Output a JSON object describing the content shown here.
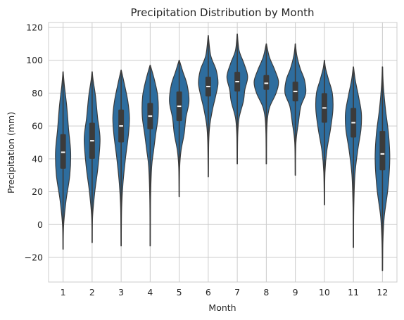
{
  "chart_data": {
    "type": "violin",
    "title": "Precipitation Distribution by Month",
    "xlabel": "Month",
    "ylabel": "Precipitation (mm)",
    "ylim": [
      -35,
      123
    ],
    "yticks": [
      -20,
      0,
      20,
      40,
      60,
      80,
      100,
      120
    ],
    "grid": true,
    "categories": [
      "1",
      "2",
      "3",
      "4",
      "5",
      "6",
      "7",
      "8",
      "9",
      "10",
      "11",
      "12"
    ],
    "fill_color": "#2e6d9e",
    "edge_color": "#3b3b3b",
    "box_color": "#3b3b3b",
    "median_color": "#ffffff",
    "violins": [
      {
        "min": -15,
        "q1": 34,
        "median": 44,
        "q3": 55,
        "max": 93,
        "profile": [
          [
            -15,
            0.01
          ],
          [
            0,
            0.05
          ],
          [
            15,
            0.25
          ],
          [
            30,
            0.55
          ],
          [
            44,
            0.62
          ],
          [
            58,
            0.45
          ],
          [
            72,
            0.3
          ],
          [
            85,
            0.1
          ],
          [
            93,
            0.01
          ]
        ]
      },
      {
        "min": -11,
        "q1": 40,
        "median": 51,
        "q3": 62,
        "max": 93,
        "profile": [
          [
            -11,
            0.01
          ],
          [
            5,
            0.04
          ],
          [
            20,
            0.22
          ],
          [
            35,
            0.48
          ],
          [
            52,
            0.65
          ],
          [
            65,
            0.45
          ],
          [
            78,
            0.28
          ],
          [
            88,
            0.08
          ],
          [
            93,
            0.01
          ]
        ]
      },
      {
        "min": -13,
        "q1": 50,
        "median": 60,
        "q3": 70,
        "max": 94,
        "profile": [
          [
            -13,
            0.01
          ],
          [
            10,
            0.04
          ],
          [
            25,
            0.15
          ],
          [
            40,
            0.35
          ],
          [
            55,
            0.6
          ],
          [
            65,
            0.68
          ],
          [
            75,
            0.55
          ],
          [
            86,
            0.25
          ],
          [
            94,
            0.01
          ]
        ]
      },
      {
        "min": -13,
        "q1": 58,
        "median": 66,
        "q3": 74,
        "max": 97,
        "profile": [
          [
            -13,
            0.01
          ],
          [
            15,
            0.03
          ],
          [
            35,
            0.12
          ],
          [
            45,
            0.28
          ],
          [
            55,
            0.45
          ],
          [
            66,
            0.65
          ],
          [
            78,
            0.62
          ],
          [
            88,
            0.35
          ],
          [
            97,
            0.01
          ]
        ]
      },
      {
        "min": 17,
        "q1": 63,
        "median": 72,
        "q3": 81,
        "max": 100,
        "profile": [
          [
            17,
            0.01
          ],
          [
            35,
            0.04
          ],
          [
            45,
            0.15
          ],
          [
            55,
            0.4
          ],
          [
            65,
            0.55
          ],
          [
            75,
            0.8
          ],
          [
            85,
            0.65
          ],
          [
            93,
            0.3
          ],
          [
            100,
            0.01
          ]
        ]
      },
      {
        "min": 29,
        "q1": 78,
        "median": 84,
        "q3": 90,
        "max": 115,
        "profile": [
          [
            29,
            0.01
          ],
          [
            50,
            0.04
          ],
          [
            60,
            0.12
          ],
          [
            70,
            0.35
          ],
          [
            78,
            0.6
          ],
          [
            86,
            0.8
          ],
          [
            94,
            0.65
          ],
          [
            103,
            0.2
          ],
          [
            115,
            0.01
          ]
        ]
      },
      {
        "min": 37,
        "q1": 81,
        "median": 87,
        "q3": 93,
        "max": 116,
        "profile": [
          [
            37,
            0.01
          ],
          [
            55,
            0.04
          ],
          [
            65,
            0.15
          ],
          [
            75,
            0.5
          ],
          [
            82,
            0.62
          ],
          [
            90,
            0.85
          ],
          [
            98,
            0.55
          ],
          [
            106,
            0.15
          ],
          [
            116,
            0.01
          ]
        ]
      },
      {
        "min": 37,
        "q1": 82,
        "median": 86,
        "q3": 91,
        "max": 110,
        "profile": [
          [
            37,
            0.01
          ],
          [
            55,
            0.03
          ],
          [
            65,
            0.1
          ],
          [
            72,
            0.3
          ],
          [
            80,
            0.8
          ],
          [
            87,
            1.0
          ],
          [
            94,
            0.7
          ],
          [
            102,
            0.25
          ],
          [
            110,
            0.01
          ]
        ]
      },
      {
        "min": 30,
        "q1": 75,
        "median": 81,
        "q3": 87,
        "max": 110,
        "profile": [
          [
            30,
            0.01
          ],
          [
            50,
            0.05
          ],
          [
            62,
            0.25
          ],
          [
            72,
            0.45
          ],
          [
            80,
            0.85
          ],
          [
            88,
            0.75
          ],
          [
            95,
            0.4
          ],
          [
            103,
            0.12
          ],
          [
            110,
            0.01
          ]
        ]
      },
      {
        "min": 12,
        "q1": 62,
        "median": 71,
        "q3": 80,
        "max": 100,
        "profile": [
          [
            12,
            0.01
          ],
          [
            32,
            0.05
          ],
          [
            45,
            0.2
          ],
          [
            58,
            0.5
          ],
          [
            70,
            0.7
          ],
          [
            80,
            0.65
          ],
          [
            88,
            0.35
          ],
          [
            95,
            0.1
          ],
          [
            100,
            0.01
          ]
        ]
      },
      {
        "min": -14,
        "q1": 53,
        "median": 62,
        "q3": 71,
        "max": 96,
        "profile": [
          [
            -14,
            0.01
          ],
          [
            10,
            0.03
          ],
          [
            30,
            0.12
          ],
          [
            45,
            0.35
          ],
          [
            58,
            0.62
          ],
          [
            68,
            0.65
          ],
          [
            78,
            0.42
          ],
          [
            88,
            0.15
          ],
          [
            96,
            0.01
          ]
        ]
      },
      {
        "min": -28,
        "q1": 33,
        "median": 43,
        "q3": 57,
        "max": 96,
        "profile": [
          [
            -28,
            0.01
          ],
          [
            -10,
            0.04
          ],
          [
            5,
            0.15
          ],
          [
            22,
            0.45
          ],
          [
            40,
            0.6
          ],
          [
            55,
            0.5
          ],
          [
            70,
            0.25
          ],
          [
            85,
            0.07
          ],
          [
            96,
            0.01
          ]
        ]
      }
    ]
  }
}
